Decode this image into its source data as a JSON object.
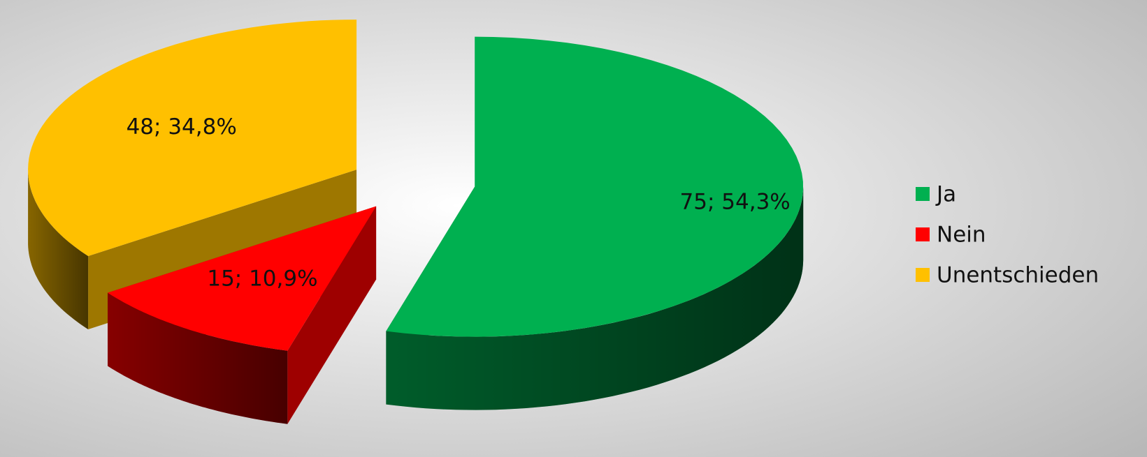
{
  "chart_data": {
    "type": "pie3d",
    "categories": [
      "Ja",
      "Nein",
      "Unentschieden"
    ],
    "values": [
      75,
      15,
      48
    ],
    "value_labels": [
      "75; 54,3%",
      "15; 10,9%",
      "48; 34,8%"
    ],
    "colors": [
      "#00b050",
      "#ff0000",
      "#ffc000"
    ],
    "legend": "right"
  }
}
